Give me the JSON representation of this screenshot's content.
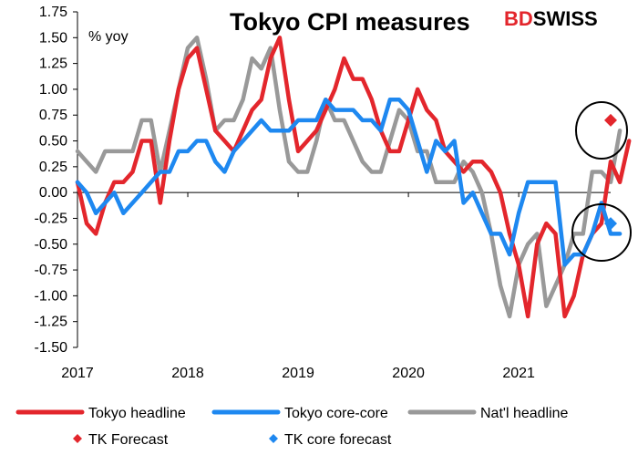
{
  "brand": {
    "part1": "BD",
    "part2": "SWISS",
    "accent": "#e3262c"
  },
  "chart_data": {
    "type": "line",
    "title": "Tokyo CPI measures",
    "unit_label": "% yoy",
    "xlabel": "",
    "ylabel": "",
    "ylim": [
      -1.5,
      1.75
    ],
    "yticks": [
      "1.75",
      "1.50",
      "1.25",
      "1.00",
      "0.75",
      "0.50",
      "0.25",
      "0.00",
      "-0.25",
      "-0.50",
      "-0.75",
      "-1.00",
      "-1.25",
      "-1.50"
    ],
    "xticks": [
      "2017",
      "2018",
      "2019",
      "2020",
      "2021"
    ],
    "x_start": "2017-01",
    "x_end": "2021-11",
    "grid": false,
    "legend_position": "bottom",
    "series": [
      {
        "name": "Tokyo headline",
        "color": "#e3262c",
        "values": [
          0.1,
          -0.3,
          -0.4,
          -0.1,
          0.1,
          0.1,
          0.2,
          0.5,
          0.5,
          -0.1,
          0.5,
          1.0,
          1.3,
          1.4,
          1.0,
          0.6,
          0.5,
          0.4,
          0.6,
          0.8,
          0.9,
          1.3,
          1.5,
          0.9,
          0.4,
          0.5,
          0.6,
          0.8,
          1.0,
          1.3,
          1.1,
          1.1,
          0.9,
          0.6,
          0.4,
          0.4,
          0.7,
          1.0,
          0.8,
          0.7,
          0.4,
          0.3,
          0.2,
          0.3,
          0.3,
          0.2,
          0.0,
          -0.4,
          -0.7,
          -1.2,
          -0.5,
          -0.3,
          -0.4,
          -1.2,
          -1.0,
          -0.6,
          -0.4,
          -0.3,
          0.3,
          0.1,
          0.5
        ]
      },
      {
        "name": "Tokyo core-core",
        "color": "#1e88f0",
        "values": [
          0.1,
          0.0,
          -0.2,
          -0.1,
          0.0,
          -0.2,
          -0.1,
          0.0,
          0.1,
          0.2,
          0.2,
          0.4,
          0.4,
          0.5,
          0.5,
          0.3,
          0.2,
          0.4,
          0.5,
          0.6,
          0.7,
          0.6,
          0.6,
          0.6,
          0.7,
          0.7,
          0.7,
          0.9,
          0.8,
          0.8,
          0.8,
          0.7,
          0.7,
          0.6,
          0.9,
          0.9,
          0.8,
          0.5,
          0.2,
          0.5,
          0.4,
          0.5,
          -0.1,
          0.0,
          -0.2,
          -0.4,
          -0.4,
          -0.6,
          -0.2,
          0.1,
          0.1,
          0.1,
          0.1,
          -0.7,
          -0.6,
          -0.6,
          -0.4,
          -0.1,
          -0.4,
          -0.4
        ]
      },
      {
        "name": "Nat'l headline",
        "color": "#999999",
        "values": [
          0.4,
          0.3,
          0.2,
          0.4,
          0.4,
          0.4,
          0.4,
          0.7,
          0.7,
          0.2,
          0.6,
          1.0,
          1.4,
          1.5,
          1.1,
          0.6,
          0.7,
          0.7,
          0.9,
          1.3,
          1.2,
          1.4,
          0.8,
          0.3,
          0.2,
          0.2,
          0.5,
          0.9,
          0.7,
          0.7,
          0.5,
          0.3,
          0.2,
          0.2,
          0.5,
          0.8,
          0.7,
          0.4,
          0.4,
          0.1,
          0.1,
          0.1,
          0.3,
          0.2,
          0.0,
          -0.4,
          -0.9,
          -1.2,
          -0.7,
          -0.5,
          -0.4,
          -1.1,
          -0.9,
          -0.7,
          -0.4,
          -0.4,
          0.2,
          0.2,
          0.1,
          0.6
        ]
      },
      {
        "name": "TK Forecast",
        "color": "#e3262c",
        "marker": "diamond",
        "points": [
          {
            "x": "2021-11",
            "y": 0.7
          }
        ]
      },
      {
        "name": "TK core forecast",
        "color": "#1e88f0",
        "marker": "diamond",
        "points": [
          {
            "x": "2021-11",
            "y": -0.3
          }
        ]
      }
    ]
  }
}
